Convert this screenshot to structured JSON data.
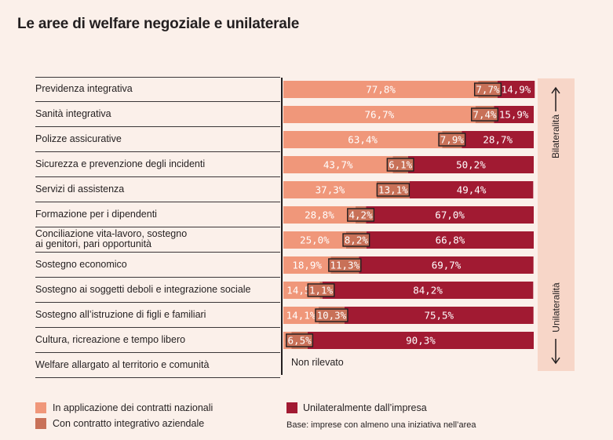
{
  "title": "Le aree di welfare negoziale e unilaterale",
  "colors": {
    "national": "#f0977a",
    "integrative": "#c87158",
    "unilateral": "#a11a32",
    "panel": "#f7d6c8",
    "background": "#fbf0ea"
  },
  "side_panel": {
    "top_label": "Bilateralità",
    "bottom_label": "Unilateralità"
  },
  "not_detected_text": "Non rilevato",
  "legend": {
    "national": "In applicazione dei contratti nazionali",
    "integrative": "Con contratto integrativo aziendale",
    "unilateral": "Unilateralmente dall’impresa"
  },
  "base_note": "Base: imprese con almeno una iniziativa nell’area",
  "chart_data": {
    "type": "bar",
    "stacked": true,
    "orientation": "horizontal",
    "categories": [
      "Previdenza integrativa",
      "Sanità integrativa",
      "Polizze assicurative",
      "Sicurezza e prevenzione degli incidenti",
      "Servizi di assistenza",
      "Formazione per i dipendenti",
      "Conciliazione vita-lavoro, sostegno ai genitori, pari opportunità",
      "Sostegno economico",
      "Sostegno ai soggetti deboli e integrazione sociale",
      "Sostegno all’istruzione di figli e familiari",
      "Cultura, ricreazione e tempo libero",
      "Welfare allargato al territorio e comunità"
    ],
    "category_lines": [
      [
        "Previdenza integrativa"
      ],
      [
        "Sanità integrativa"
      ],
      [
        "Polizze assicurative"
      ],
      [
        "Sicurezza e prevenzione degli incidenti"
      ],
      [
        "Servizi di assistenza"
      ],
      [
        "Formazione per i dipendenti"
      ],
      [
        "Conciliazione vita-lavoro, sostegno",
        "ai genitori, pari opportunità"
      ],
      [
        "Sostegno economico"
      ],
      [
        "Sostegno ai soggetti deboli e integrazione sociale"
      ],
      [
        "Sostegno all’istruzione di figli e familiari"
      ],
      [
        "Cultura, ricreazione e tempo libero"
      ],
      [
        "Welfare allargato al territorio e comunità"
      ]
    ],
    "series": [
      {
        "name": "In applicazione dei contratti nazionali",
        "values": [
          77.8,
          76.7,
          63.4,
          43.7,
          37.3,
          28.8,
          25.0,
          18.9,
          14.5,
          14.1,
          3.2,
          null
        ],
        "labels": [
          "77,8%",
          "76,7%",
          "63,4%",
          "43,7%",
          "37,3%",
          "28,8%",
          "25,0%",
          "18,9%",
          "14,5%",
          "14,1%",
          "3,2%",
          ""
        ]
      },
      {
        "name": "Con contratto integrativo aziendale",
        "values": [
          7.7,
          7.4,
          7.9,
          6.1,
          13.1,
          4.2,
          8.2,
          11.3,
          1.1,
          10.3,
          6.5,
          null
        ],
        "labels": [
          "7,7%",
          "7,4%",
          "7,9%",
          "6,1%",
          "13,1%",
          "4,2%",
          "8,2%",
          "11,3%",
          "1,1%",
          "10,3%",
          "6,5%",
          ""
        ]
      },
      {
        "name": "Unilateralmente dall’impresa",
        "values": [
          14.9,
          15.9,
          28.7,
          50.2,
          49.4,
          67.0,
          66.8,
          69.7,
          84.2,
          75.5,
          90.3,
          null
        ],
        "labels": [
          "14,9%",
          "15,9%",
          "28,7%",
          "50,2%",
          "49,4%",
          "67,0%",
          "66,8%",
          "69,7%",
          "84,2%",
          "75,5%",
          "90,3%",
          ""
        ]
      }
    ],
    "xlim": [
      0,
      100
    ]
  }
}
